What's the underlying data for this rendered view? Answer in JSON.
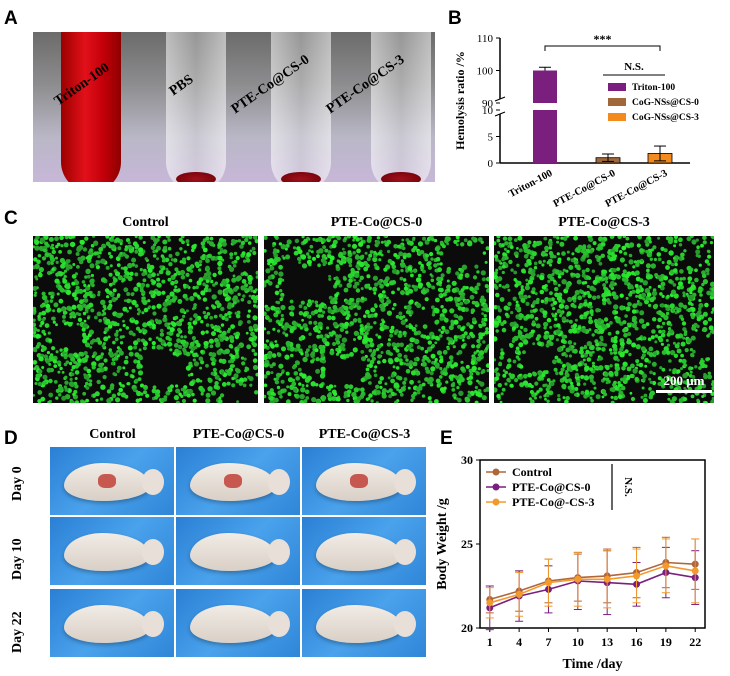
{
  "panels": {
    "a": "A",
    "b": "B",
    "c": "C",
    "d": "D",
    "e": "E"
  },
  "tubes": {
    "labels": [
      "Triton-100",
      "PBS",
      "PTE-Co@CS-0",
      "PTE-Co@CS-3"
    ]
  },
  "micro": {
    "headers": [
      "Control",
      "PTE-Co@CS-0",
      "PTE-Co@CS-3"
    ],
    "scale": "200 μm"
  },
  "mice": {
    "cols": [
      "Control",
      "PTE-Co@CS-0",
      "PTE-Co@CS-3"
    ],
    "rows": [
      "Day 0",
      "Day 10",
      "Day 22"
    ]
  },
  "colors": {
    "triton": "#7b1f7f",
    "cs0": "#a0683a",
    "cs3": "#f28a1e",
    "ctrl": "#b0663a",
    "pte0": "#7b1f7f",
    "pte3": "#f39a2c",
    "cell": "#35c13a"
  },
  "chart_data": [
    {
      "type": "bar",
      "ylabel": "Hemolysis ratio /%",
      "categories": [
        "Triton-100",
        "PTE-Co@CS-0",
        "PTE-Co@CS-3"
      ],
      "values": [
        100,
        1.0,
        1.8
      ],
      "errors": [
        1.0,
        0.7,
        1.4
      ],
      "legend": [
        "Triton-100",
        "CoG-NSs@CS-0",
        "CoG-NSs@CS-3"
      ],
      "legend_position": "right",
      "broken_axis": {
        "lower": [
          0,
          10
        ],
        "upper": [
          90,
          110
        ]
      },
      "yticks_lower": [
        0,
        5,
        10
      ],
      "yticks_upper": [
        90,
        100,
        110
      ],
      "annotations": [
        "***",
        "N.S."
      ]
    },
    {
      "type": "line",
      "xlabel": "Time /day",
      "ylabel": "Body Weight /g",
      "x": [
        1,
        4,
        7,
        10,
        13,
        16,
        19,
        22
      ],
      "ylim": [
        20,
        30
      ],
      "yticks": [
        20,
        25,
        30
      ],
      "legend_position": "top-left",
      "annotation": "N.S.",
      "series": [
        {
          "name": "Control",
          "values": [
            21.7,
            22.2,
            22.8,
            23.0,
            23.1,
            23.3,
            23.9,
            23.8
          ],
          "errors": [
            0.8,
            1.2,
            1.3,
            1.4,
            1.6,
            1.5,
            1.5,
            1.5
          ]
        },
        {
          "name": "PTE-Co@CS-0",
          "values": [
            21.2,
            21.9,
            22.3,
            22.8,
            22.7,
            22.6,
            23.3,
            23.0
          ],
          "errors": [
            1.3,
            1.5,
            1.4,
            1.7,
            1.9,
            1.3,
            1.5,
            1.6
          ]
        },
        {
          "name": "PTE-Co@-CS-3",
          "values": [
            21.5,
            22.0,
            22.7,
            22.9,
            22.9,
            23.1,
            23.7,
            23.4
          ],
          "errors": [
            0.9,
            1.3,
            1.4,
            1.6,
            1.7,
            1.6,
            1.6,
            1.9
          ]
        }
      ]
    }
  ]
}
